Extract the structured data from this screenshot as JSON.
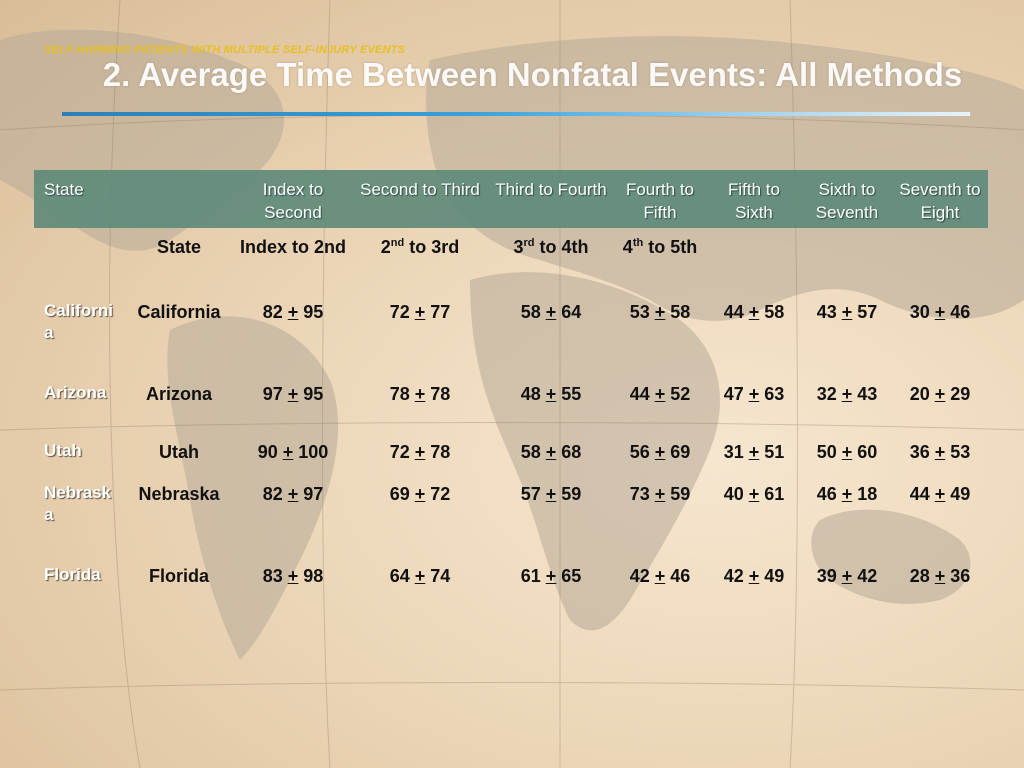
{
  "subtitle": "SELF-HARMING PATIENTS WITH MULTIPLE SELF-INJURY EVENTS",
  "title": "2.  Average Time Between Nonfatal Events:  All Methods",
  "header": {
    "state": "State",
    "cols": [
      "Index to Second",
      "Second to Third",
      "Third to Fourth",
      "Fourth to Fifth",
      "Fifth to Sixth",
      "Sixth to Seventh",
      "Seventh to Eight"
    ]
  },
  "subheader": {
    "state": "State",
    "c1": "Index to 2nd",
    "c2_base": "2",
    "c2_sup": "nd",
    "c2_rest": " to 3rd",
    "c3_base": "3",
    "c3_sup": "rd",
    "c3_rest": " to 4th",
    "c4_base": "4",
    "c4_sup": "th",
    "c4_rest": " to 5th"
  },
  "rows": [
    {
      "ghost": "California",
      "state": "California",
      "vals": [
        "82 + 95",
        "72 + 77",
        "58 + 64",
        "53 + 58",
        "44 + 58",
        "43 + 57",
        "30 + 46"
      ]
    },
    {
      "ghost": "Arizona",
      "state": "Arizona",
      "vals": [
        "97 + 95",
        "78 + 78",
        "48 + 55",
        "44 + 52",
        "47 + 63",
        "32 + 43",
        "20 + 29"
      ]
    },
    {
      "ghost": "Utah",
      "state": "Utah",
      "vals": [
        "90 + 100",
        "72 + 78",
        "58 + 68",
        "56 + 69",
        "31 + 51",
        "50 + 60",
        "36 + 53"
      ]
    },
    {
      "ghost": "Nebraska",
      "state": "Nebraska",
      "vals": [
        "82 + 97",
        "69 + 72",
        "57 + 59",
        "73 + 59",
        "40 + 61",
        "46 + 18",
        "44 + 49"
      ]
    },
    {
      "ghost": "Florida",
      "state": "Florida",
      "vals": [
        "83 + 98",
        "64 + 74",
        "61 + 65",
        "42 + 46",
        "42 + 49",
        "39 + 42",
        "28 + 36"
      ]
    }
  ],
  "colors": {
    "header_band": "#5f8a7a",
    "subtitle": "#e8c020",
    "rule": "#3aa0d8"
  }
}
